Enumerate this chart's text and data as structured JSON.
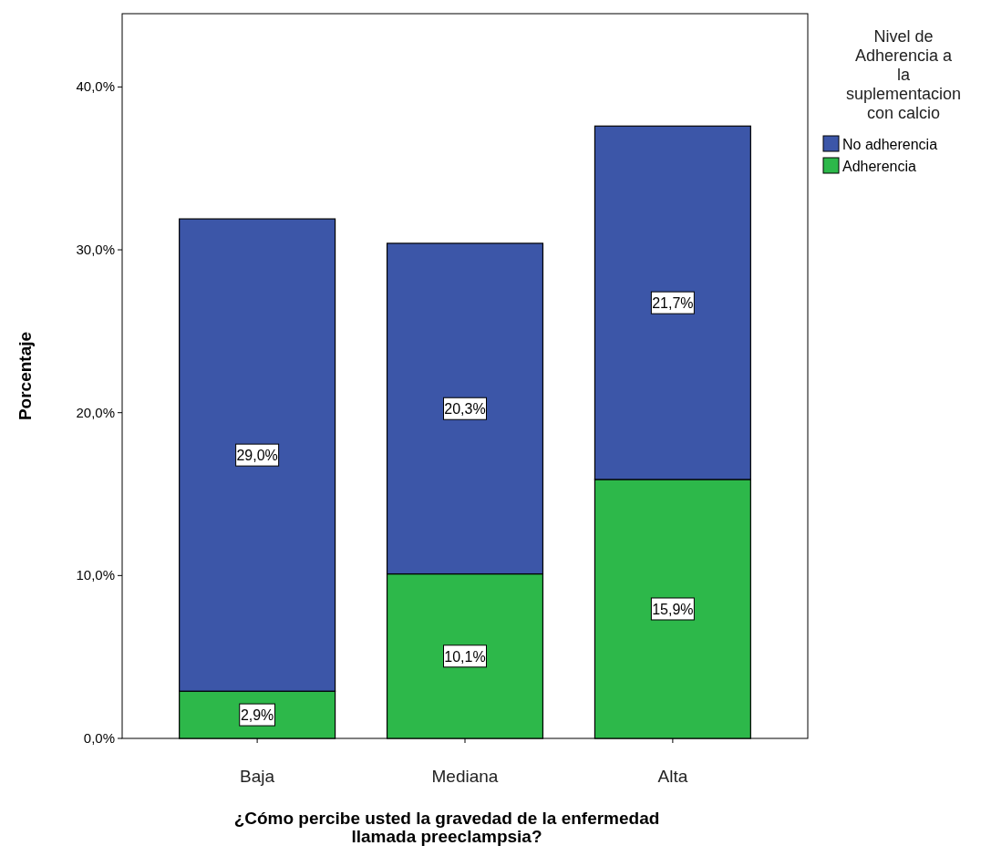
{
  "chart_data": {
    "type": "bar",
    "stacked": true,
    "xlabel": "¿Cómo percibe usted la gravedad de la enfermedad llamada preeclampsia?",
    "ylabel": "Porcentaje",
    "legend_title": "Nivel de Adherencia a la suplementacion con calcio",
    "legend": "top right",
    "categories": [
      "Baja",
      "Mediana",
      "Alta"
    ],
    "series": [
      {
        "name": "Adherencia",
        "color": "#2db84a",
        "values": [
          2.9,
          10.1,
          15.9
        ],
        "value_labels": [
          "2,9%",
          "10,1%",
          "15,9%"
        ]
      },
      {
        "name": "No adherencia",
        "color": "#3c56a8",
        "values": [
          29.0,
          20.3,
          21.7
        ],
        "value_labels": [
          "29,0%",
          "20,3%",
          "21,7%"
        ]
      }
    ],
    "ylim": [
      0,
      44.5
    ],
    "yticks": [
      {
        "value": 0,
        "label": "0,0%"
      },
      {
        "value": 10,
        "label": "10,0%"
      },
      {
        "value": 20,
        "label": "20,0%"
      },
      {
        "value": 30,
        "label": "30,0%"
      },
      {
        "value": 40,
        "label": "40,0%"
      }
    ],
    "grid": false
  }
}
